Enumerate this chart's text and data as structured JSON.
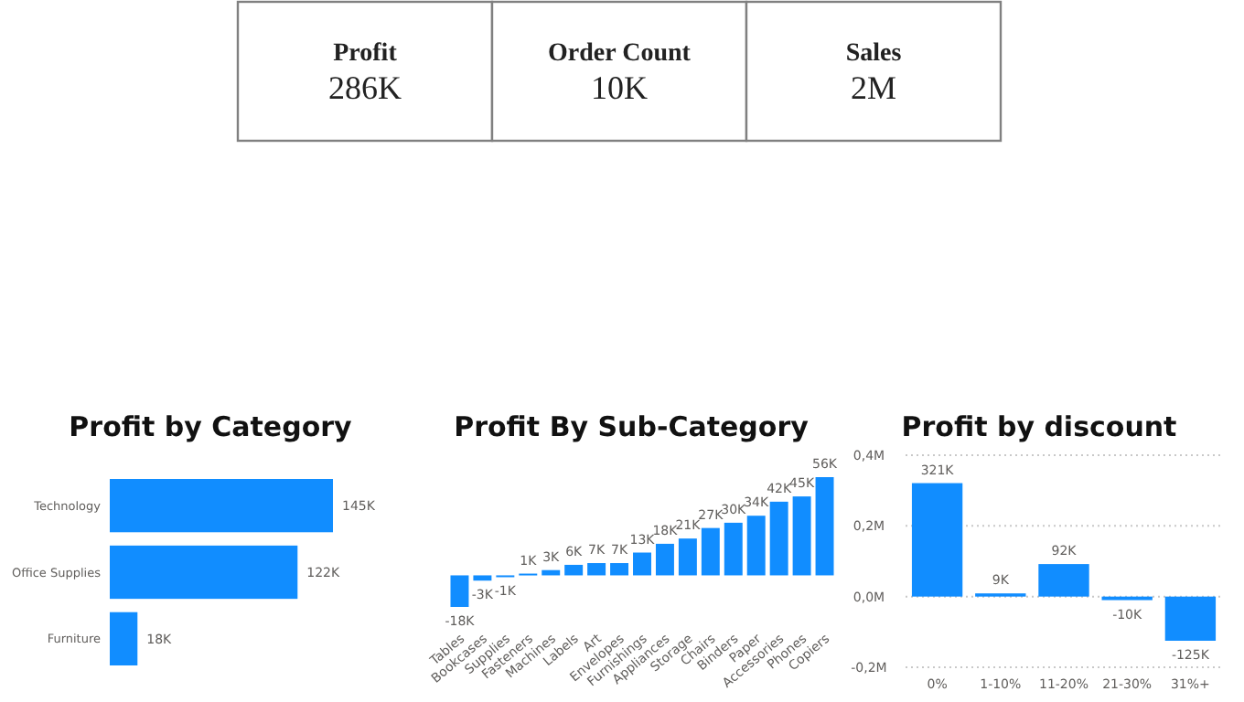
{
  "chart_data": [
    {
      "type": "other",
      "categories": [
        "Profit",
        "Order Count",
        "Sales"
      ],
      "value_labels": [
        "286K",
        "10K",
        "2M"
      ]
    },
    {
      "type": "bar",
      "title": "Profit by Category",
      "orientation": "horizontal",
      "categories": [
        "Technology",
        "Office Supplies",
        "Furniture"
      ],
      "values": [
        145,
        122,
        18
      ],
      "color": "#118dff",
      "value_labels": [
        "145K",
        "122K",
        "18K"
      ]
    },
    {
      "type": "bar",
      "title": "Profit By Sub-Category",
      "categories": [
        "Tables",
        "Bookcases",
        "Supplies",
        "Fasteners",
        "Machines",
        "Labels",
        "Art",
        "Envelopes",
        "Furnishings",
        "Appliances",
        "Storage",
        "Chairs",
        "Binders",
        "Paper",
        "Accessories",
        "Phones",
        "Copiers"
      ],
      "values": [
        -18,
        -3,
        -1,
        1,
        3,
        6,
        7,
        7,
        13,
        18,
        21,
        27,
        30,
        34,
        42,
        45,
        56
      ],
      "color": "#118dff",
      "value_labels": [
        "-18K",
        "-3K",
        "-1K",
        "1K",
        "3K",
        "6K",
        "7K",
        "7K",
        "13K",
        "18K",
        "21K",
        "27K",
        "30K",
        "34K",
        "42K",
        "45K",
        "56K"
      ]
    },
    {
      "type": "bar",
      "title": "Profit by discount",
      "categories": [
        "0%",
        "1-10%",
        "11-20%",
        "21-30%",
        "31%+"
      ],
      "values": [
        0.321,
        0.009,
        0.092,
        -0.01,
        -0.125
      ],
      "color": "#118dff",
      "annotations": [
        {
          "text": "321K",
          "x": "0%",
          "y": 0.321
        },
        {
          "text": "9K",
          "x": "1-10%",
          "y": 0.009
        },
        {
          "text": "92K",
          "x": "11-20%",
          "y": 0.092
        },
        {
          "text": "-10K",
          "x": "21-30%",
          "y": -0.01
        },
        {
          "text": "-125K",
          "x": "31%+",
          "y": -0.125
        }
      ],
      "ylim": [
        -0.2,
        0.4
      ],
      "yticks": [
        {
          "value": -0.2,
          "label": "-0,2M"
        },
        {
          "value": 0,
          "label": "0,0M"
        },
        {
          "value": 0.2,
          "label": "0,2M"
        },
        {
          "value": 0.4,
          "label": "0,4M"
        }
      ],
      "grid": "y"
    }
  ]
}
